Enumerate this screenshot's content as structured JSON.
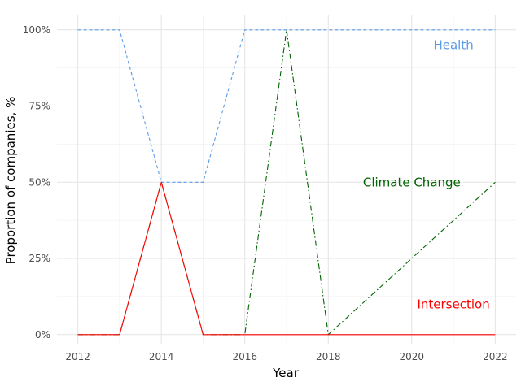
{
  "chart_data": {
    "type": "line",
    "title": "",
    "xlabel": "Year",
    "ylabel": "Proportion of companies, %",
    "xlim": [
      2011.5,
      2022.5
    ],
    "ylim": [
      -0.03,
      1.05
    ],
    "x_ticks": [
      2012,
      2014,
      2016,
      2018,
      2020,
      2022
    ],
    "x_tick_labels": [
      "2012",
      "2014",
      "2016",
      "2018",
      "2020",
      "2022"
    ],
    "y_ticks": [
      0,
      0.25,
      0.5,
      0.75,
      1
    ],
    "y_tick_labels": [
      "0%",
      "25%",
      "50%",
      "75%",
      "100%"
    ],
    "grid": true,
    "legend": "none",
    "x": [
      2012,
      2013,
      2014,
      2015,
      2016,
      2017,
      2018,
      2019,
      2020,
      2021,
      2022
    ],
    "series": [
      {
        "name": "Health",
        "color": "#5b9be6",
        "dash": "dashed",
        "values": [
          1,
          1,
          0.5,
          0.5,
          1,
          1,
          1,
          1,
          1,
          1,
          1
        ]
      },
      {
        "name": "Climate Change",
        "color": "#006400",
        "dash": "dashdot",
        "values": [
          0,
          0,
          0.5,
          0,
          0,
          1,
          0,
          0.125,
          0.25,
          0.375,
          0.5
        ]
      },
      {
        "name": "Intersection",
        "color": "#ff0000",
        "dash": "solid",
        "values": [
          0,
          0,
          0.5,
          0,
          0,
          0,
          0,
          0,
          0,
          0,
          0
        ]
      }
    ],
    "annotations": [
      {
        "text": "Health",
        "x": 2021.0,
        "y": 0.95,
        "color": "#5b9be6"
      },
      {
        "text": "Climate Change",
        "x": 2020.0,
        "y": 0.5,
        "color": "#006400"
      },
      {
        "text": "Intersection",
        "x": 2021.0,
        "y": 0.1,
        "color": "#ff0000"
      }
    ]
  }
}
